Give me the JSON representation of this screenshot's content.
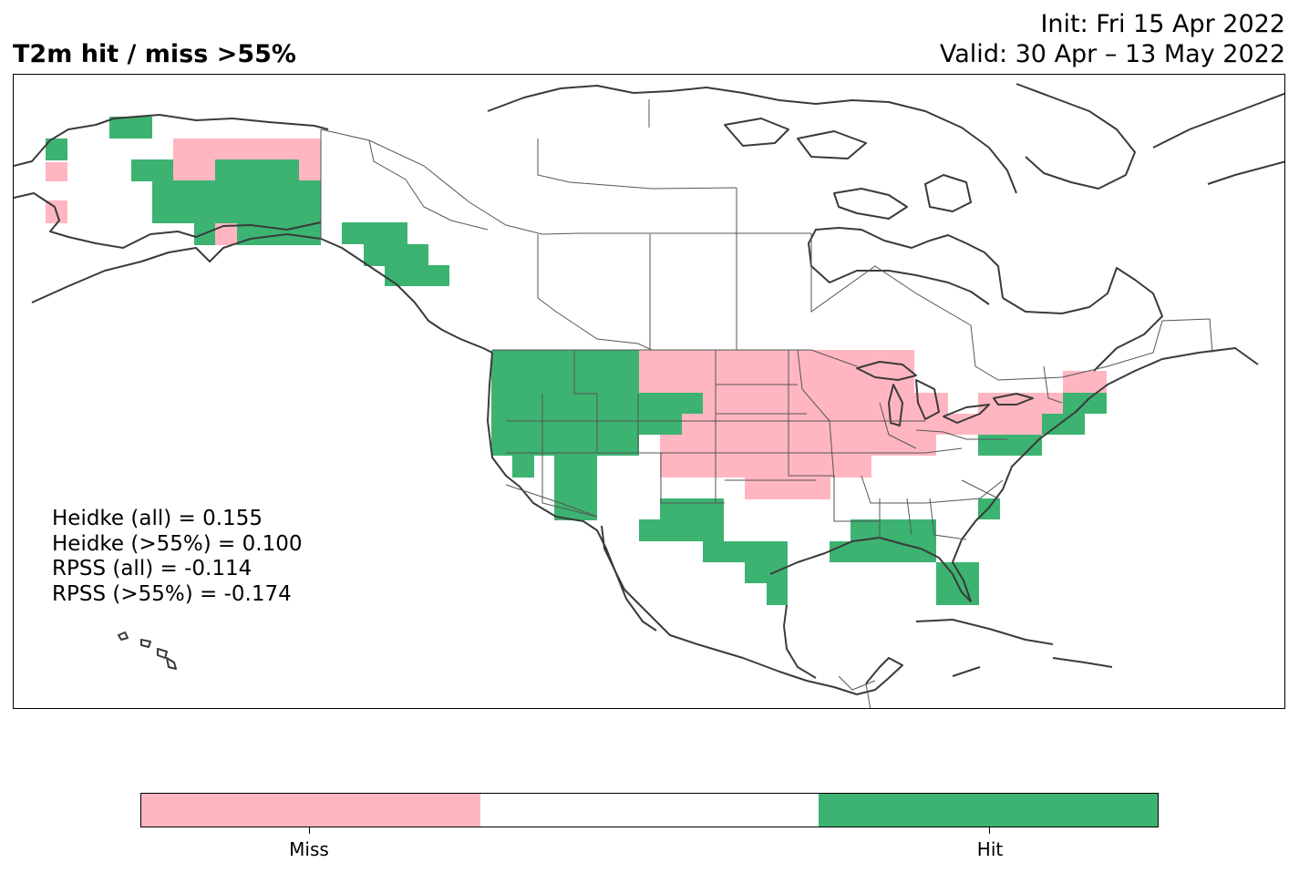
{
  "title": "T2m hit / miss  >55%",
  "init": "Init: Fri 15 Apr 2022",
  "valid": "Valid: 30 Apr – 13 May 2022",
  "stats": [
    "Heidke (all) = 0.155",
    "Heidke (>55%) = 0.100",
    "RPSS (all) = -0.114",
    "RPSS (>55%) = -0.174"
  ],
  "legend": {
    "miss_label": "Miss",
    "hit_label": "Hit",
    "colors": {
      "miss": "#ffb6c1",
      "neutral": "#ffffff",
      "hit": "#3cb371"
    }
  },
  "colors": {
    "coast": "#3a3a3a",
    "border": "#555555"
  }
}
